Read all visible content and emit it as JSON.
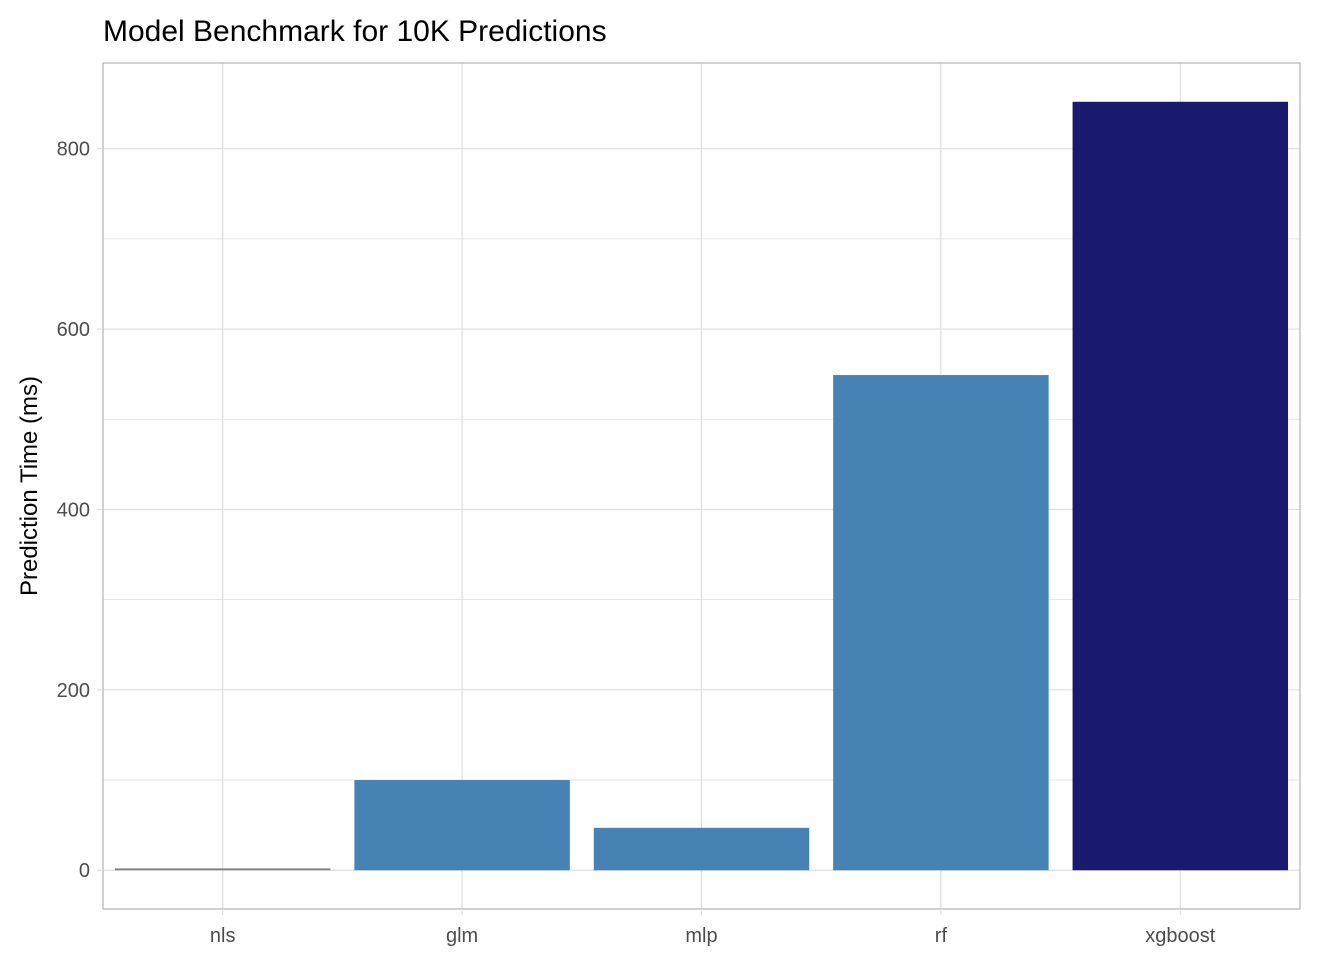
{
  "chart_data": {
    "type": "bar",
    "title": "Model Benchmark for 10K Predictions",
    "xlabel": "",
    "ylabel": "Prediction Time (ms)",
    "categories": [
      "nls",
      "glm",
      "mlp",
      "rf",
      "xgboost"
    ],
    "values": [
      2,
      100,
      47,
      549,
      852
    ],
    "bar_colors": [
      "#808080",
      "#4682b4",
      "#4682b4",
      "#4682b4",
      "#191970"
    ],
    "ylim": [
      -43,
      895
    ],
    "yticks": [
      0,
      200,
      400,
      600,
      800
    ],
    "grid": true,
    "legend": "none"
  },
  "colors": {
    "grid": "#dedede",
    "panel_border": "#b3b3b3",
    "tick_text": "#4d4d4d"
  }
}
